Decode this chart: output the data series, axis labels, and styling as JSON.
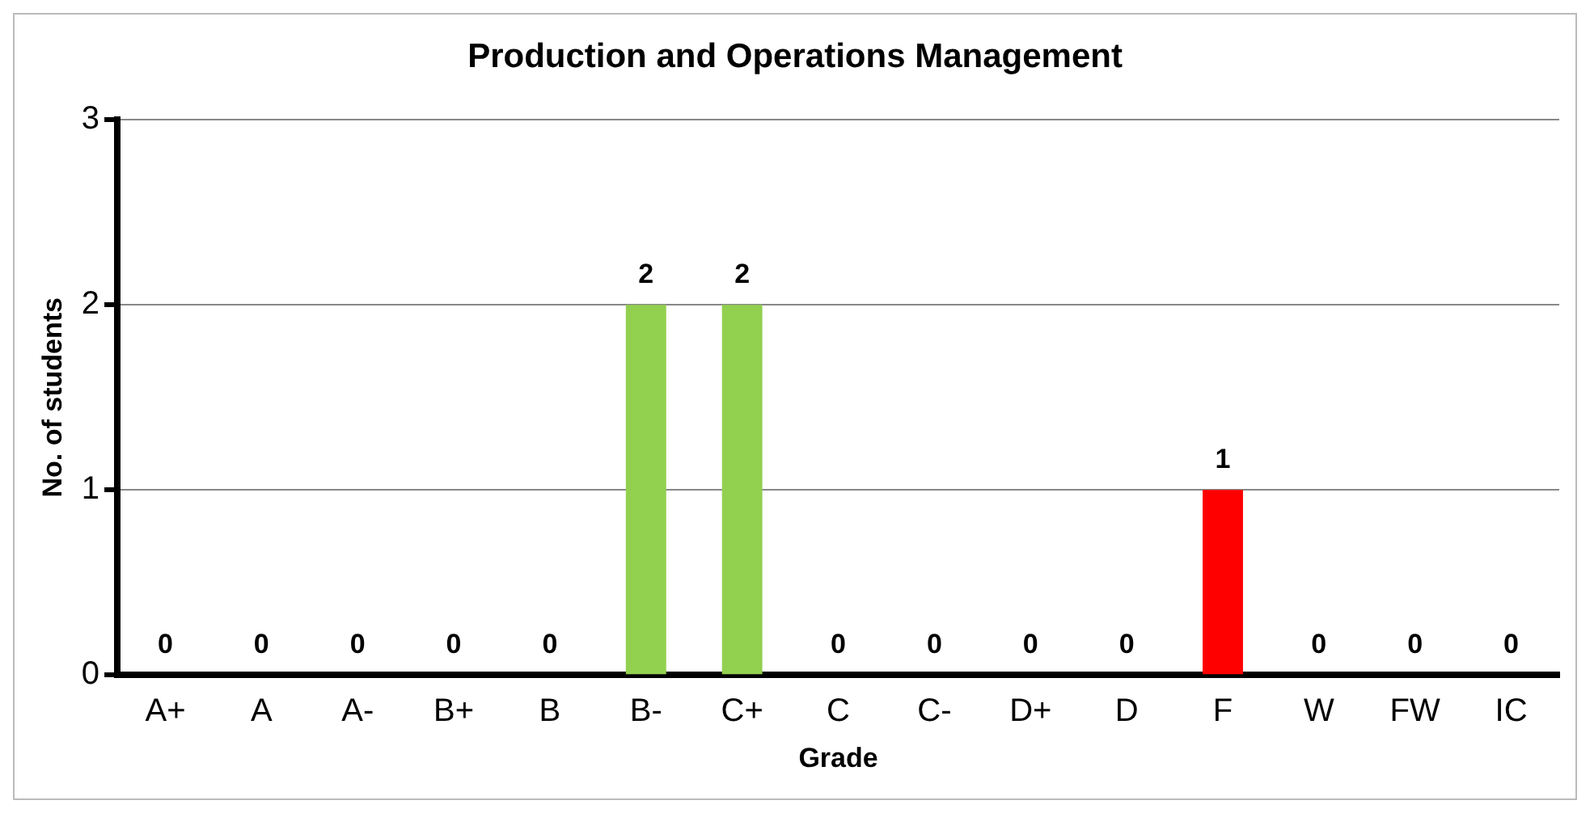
{
  "chart_data": {
    "type": "bar",
    "title": "Production and Operations Management",
    "xlabel": "Grade",
    "ylabel": "No. of students",
    "categories": [
      "A+",
      "A",
      "A-",
      "B+",
      "B",
      "B-",
      "C+",
      "C",
      "C-",
      "D+",
      "D",
      "F",
      "W",
      "FW",
      "IC"
    ],
    "values": [
      0,
      0,
      0,
      0,
      0,
      2,
      2,
      0,
      0,
      0,
      0,
      1,
      0,
      0,
      0
    ],
    "colors": [
      "#92d050",
      "#92d050",
      "#92d050",
      "#92d050",
      "#92d050",
      "#92d050",
      "#92d050",
      "#92d050",
      "#92d050",
      "#92d050",
      "#92d050",
      "#ff0000",
      "#92d050",
      "#92d050",
      "#92d050"
    ],
    "ylim": [
      0,
      3
    ],
    "yticks": [
      0,
      1,
      2,
      3
    ],
    "grid": "y",
    "data_labels": true,
    "legend": false
  }
}
